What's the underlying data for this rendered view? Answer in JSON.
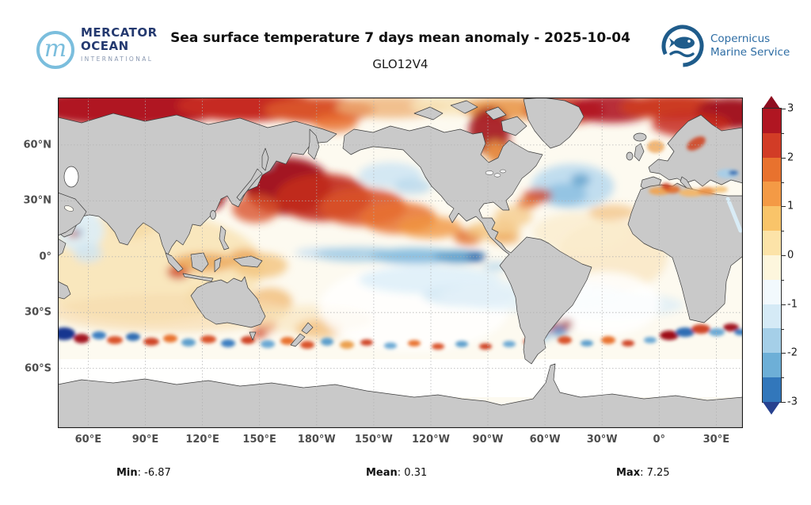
{
  "header": {
    "title": "Sea surface temperature 7 days mean anomaly - 2025-10-04",
    "subtitle": "GLO12V4"
  },
  "logos": {
    "mercator": {
      "line1": "MERCATOR",
      "line2": "OCEAN",
      "line3": "INTERNATIONAL",
      "monogram": "m"
    },
    "copernicus": {
      "line1": "Copernicus",
      "line2": "Marine Service"
    }
  },
  "axes": {
    "lon_labels": [
      "60°E",
      "90°E",
      "120°E",
      "150°E",
      "180°W",
      "150°W",
      "120°W",
      "90°W",
      "60°W",
      "30°W",
      "0°",
      "30°E"
    ],
    "lat_labels": [
      "60°N",
      "30°N",
      "0°",
      "30°S",
      "60°S"
    ]
  },
  "colorbar": {
    "tick_labels": [
      "3",
      "2",
      "1",
      "0",
      "-1",
      "-2",
      "-3"
    ],
    "tick_values": [
      3,
      2,
      1,
      0,
      -1,
      -2,
      -3
    ],
    "vmin": -3,
    "vmax": 3,
    "segment_colors_top_to_bottom": [
      "#b01622",
      "#d23c26",
      "#e8722e",
      "#f49a45",
      "#f9c469",
      "#fce3a8",
      "#fdf6dd",
      "#f2f9fd",
      "#d5eaf6",
      "#a5cfe8",
      "#6dafd7",
      "#3277bb"
    ],
    "arrow_top_color": "#8f0e20",
    "arrow_bottom_color": "#27418f"
  },
  "stats": {
    "min_label": "Min",
    "min_value": ": -6.87",
    "mean_label": "Mean",
    "mean_value": ": 0.31",
    "max_label": "Max",
    "max_value": ": 7.25"
  },
  "map_colors": {
    "land": "#c9c9c9",
    "coastline": "#3c3c3c",
    "ocean_base": "#fdfaf0",
    "grid": "#b0b0b0",
    "frame": "#1a1a1a"
  }
}
